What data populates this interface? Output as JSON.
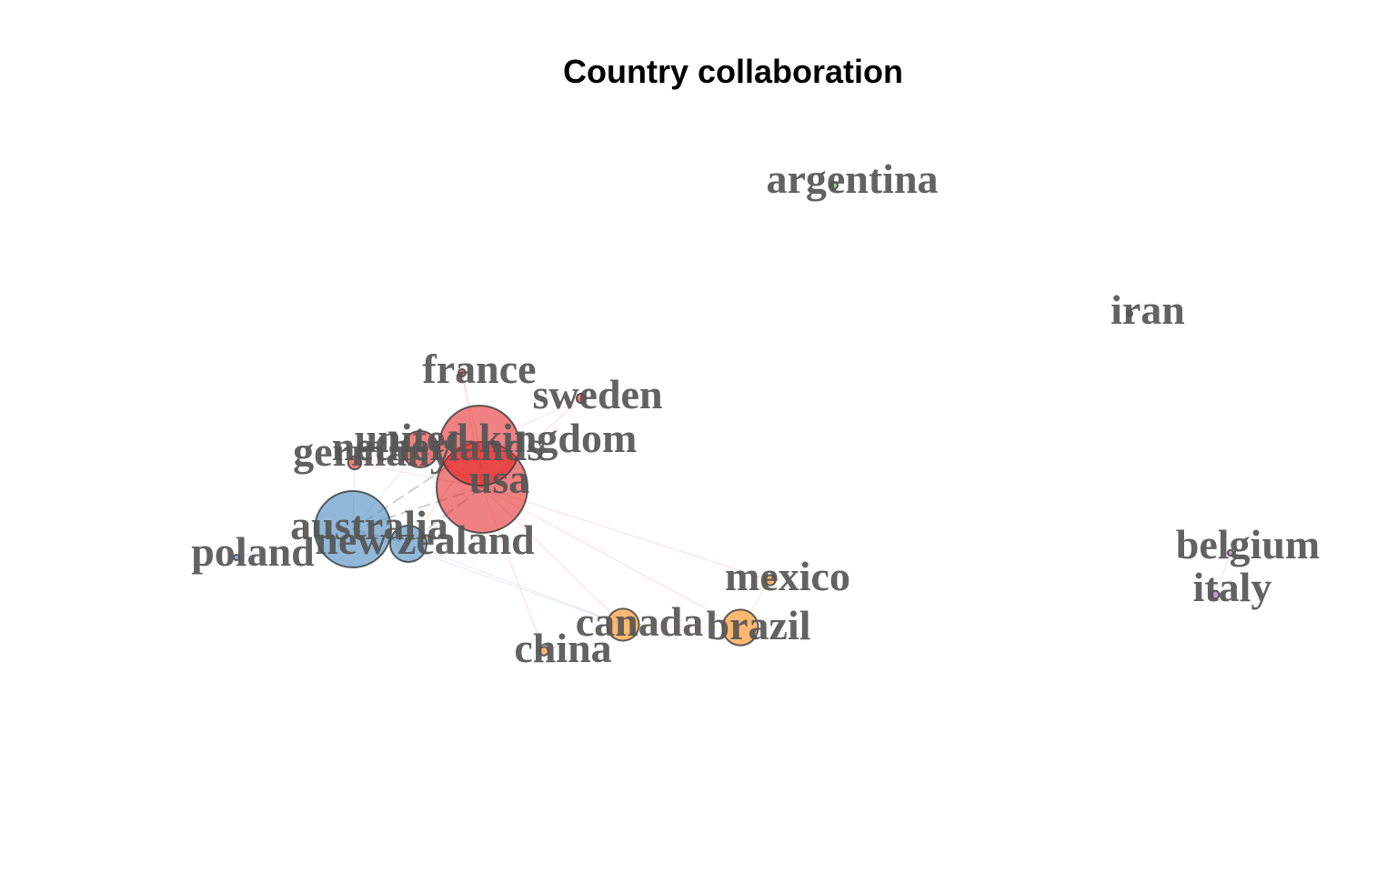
{
  "title": "Country collaboration",
  "clusters": [
    {
      "id": 1,
      "color": "#e41a1c"
    },
    {
      "id": 2,
      "color": "#377eb8"
    },
    {
      "id": 3,
      "color": "#ff7f00"
    },
    {
      "id": 4,
      "color": "#4daf4a"
    },
    {
      "id": 5,
      "color": "#984ea3"
    },
    {
      "id": 6,
      "color": "#222222"
    }
  ],
  "nodes": [
    {
      "id": "argentina",
      "label": "argentina",
      "cluster": 4,
      "degree": 1
    },
    {
      "id": "iran",
      "label": "iran",
      "cluster": 6,
      "degree": 0.6
    },
    {
      "id": "france",
      "label": "france",
      "cluster": 1,
      "degree": 1
    },
    {
      "id": "sweden",
      "label": "sweden",
      "cluster": 1,
      "degree": 1.3
    },
    {
      "id": "united kingdom",
      "label": "united kingdom",
      "cluster": 1,
      "degree": 11
    },
    {
      "id": "netherlands",
      "label": "netherlands",
      "cluster": 1,
      "degree": 5
    },
    {
      "id": "germany",
      "label": "germany",
      "cluster": 1,
      "degree": 1.8
    },
    {
      "id": "usa",
      "label": "usa",
      "cluster": 1,
      "degree": 12.5
    },
    {
      "id": "australia",
      "label": "australia",
      "cluster": 2,
      "degree": 10.5
    },
    {
      "id": "new zealand",
      "label": "new zealand",
      "cluster": 2,
      "degree": 5
    },
    {
      "id": "poland",
      "label": "poland",
      "cluster": 2,
      "degree": 0.7
    },
    {
      "id": "mexico",
      "label": "mexico",
      "cluster": 3,
      "degree": 1.4
    },
    {
      "id": "canada",
      "label": "canada",
      "cluster": 3,
      "degree": 4.4
    },
    {
      "id": "brazil",
      "label": "brazil",
      "cluster": 3,
      "degree": 4.9
    },
    {
      "id": "china",
      "label": "china",
      "cluster": 3,
      "degree": 1.2
    },
    {
      "id": "belgium",
      "label": "belgium",
      "cluster": 5,
      "degree": 0.8
    },
    {
      "id": "italy",
      "label": "italy",
      "cluster": 5,
      "degree": 1.1
    }
  ],
  "edges": [
    [
      "usa",
      "united kingdom",
      3
    ],
    [
      "usa",
      "australia",
      3
    ],
    [
      "usa",
      "new zealand",
      2
    ],
    [
      "usa",
      "netherlands",
      2
    ],
    [
      "usa",
      "germany",
      1
    ],
    [
      "usa",
      "canada",
      1
    ],
    [
      "usa",
      "brazil",
      1
    ],
    [
      "usa",
      "mexico",
      1
    ],
    [
      "usa",
      "china",
      1
    ],
    [
      "usa",
      "sweden",
      1
    ],
    [
      "usa",
      "france",
      1
    ],
    [
      "united kingdom",
      "australia",
      2
    ],
    [
      "united kingdom",
      "netherlands",
      1
    ],
    [
      "united kingdom",
      "sweden",
      1
    ],
    [
      "united kingdom",
      "france",
      1
    ],
    [
      "united kingdom",
      "new zealand",
      1
    ],
    [
      "united kingdom",
      "germany",
      1
    ],
    [
      "australia",
      "new zealand",
      2
    ],
    [
      "australia",
      "poland",
      1
    ],
    [
      "australia",
      "germany",
      1
    ],
    [
      "australia",
      "netherlands",
      1
    ],
    [
      "australia",
      "canada",
      1
    ],
    [
      "new zealand",
      "canada",
      1
    ],
    [
      "canada",
      "brazil",
      1
    ],
    [
      "canada",
      "china",
      1
    ],
    [
      "brazil",
      "mexico",
      1
    ],
    [
      "belgium",
      "italy",
      1
    ]
  ]
}
